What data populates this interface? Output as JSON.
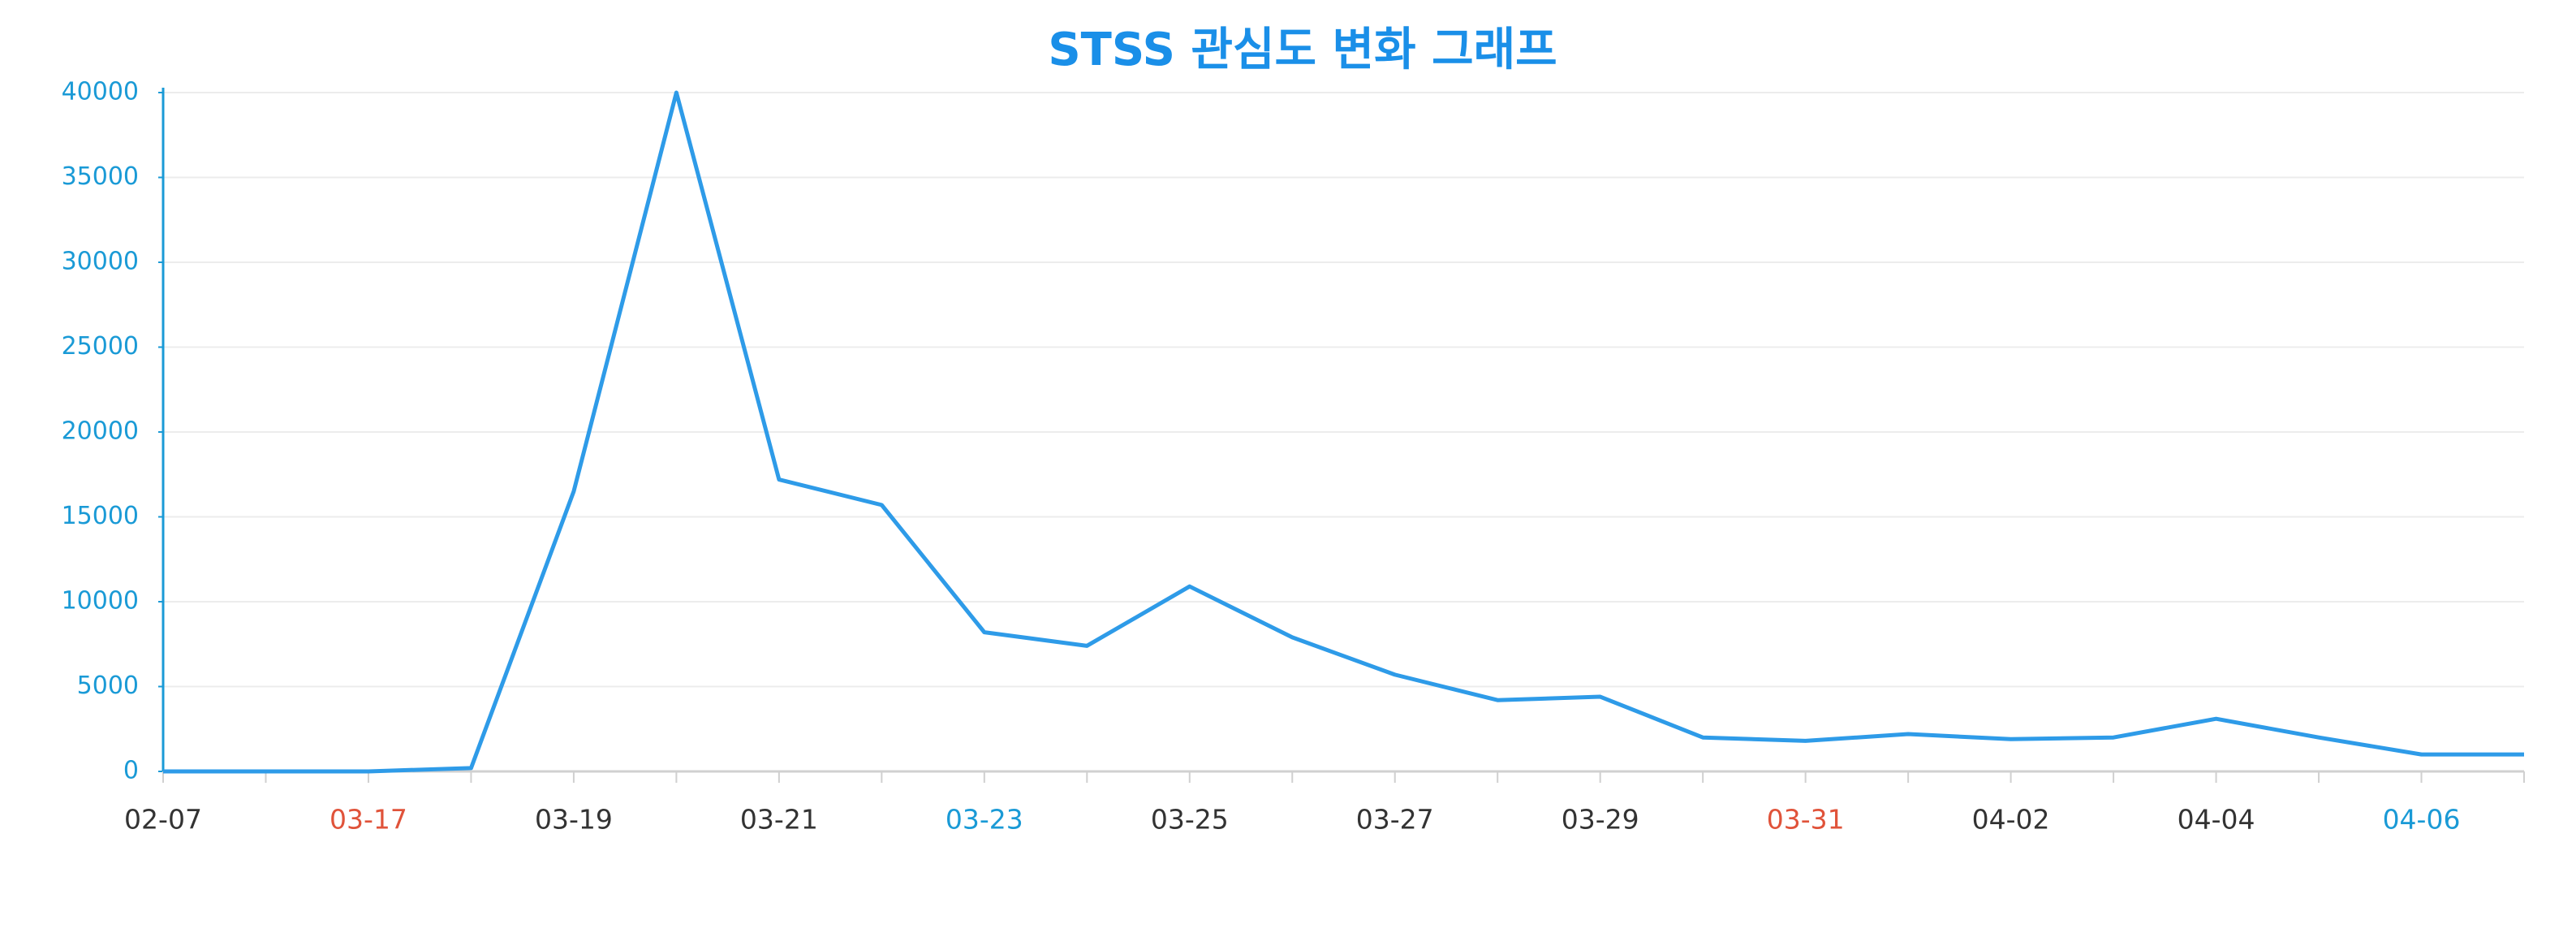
{
  "chart_data": {
    "type": "line",
    "title": "STSS 관심도 변화 그래프",
    "categories": [
      "02-07",
      null,
      "03-17",
      null,
      "03-19",
      null,
      "03-21",
      null,
      "03-23",
      null,
      "03-25",
      null,
      "03-27",
      null,
      "03-29",
      null,
      "03-31",
      null,
      "04-02",
      null,
      "04-04",
      null,
      "04-06",
      null
    ],
    "x_label_colors": [
      "#333333",
      null,
      "#e0533a",
      null,
      "#333333",
      null,
      "#333333",
      null,
      "#1a9ad6",
      null,
      "#333333",
      null,
      "#333333",
      null,
      "#333333",
      null,
      "#e0533a",
      null,
      "#333333",
      null,
      "#333333",
      null,
      "#1a9ad6",
      null
    ],
    "series": [
      {
        "name": "STSS",
        "color": "#2e9be8",
        "values": [
          0,
          0,
          0,
          200,
          16500,
          40000,
          17200,
          15700,
          8200,
          7400,
          10900,
          7900,
          5700,
          4200,
          4400,
          2000,
          1800,
          2200,
          1900,
          2000,
          3100,
          2000,
          1000,
          1000
        ]
      }
    ],
    "ylim": [
      0,
      40000
    ],
    "yticks": [
      0,
      5000,
      10000,
      15000,
      20000,
      25000,
      30000,
      35000,
      40000
    ],
    "grid": true
  }
}
